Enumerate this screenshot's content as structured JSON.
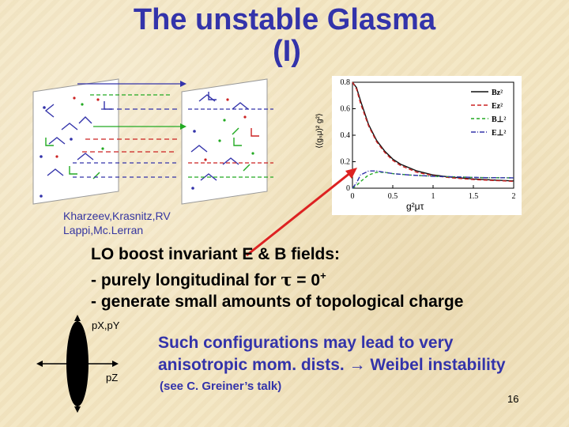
{
  "title": {
    "line1": "The unstable Glasma",
    "line2": "(I)"
  },
  "credit": {
    "line1": "Kharzeev,Krasnitz,RV",
    "line2": "Lappi,Mc.Lerran"
  },
  "bullets": {
    "heading": "LO boost invariant E & B fields:",
    "item1_prefix": "- purely longitudinal for ",
    "item1_tau": "τ",
    "item1_eq": " = 0",
    "item1_sup": "+",
    "item2": "- generate small amounts of topological charge"
  },
  "momentum_diagram": {
    "label_transverse": "pX,pY",
    "label_long": "pZ"
  },
  "conclusion": {
    "line1": "Such configurations may lead to very",
    "line2_prefix": "anisotropic mom. dists. ",
    "line2_arrow": "→",
    "line2_suffix": " Weibel instability",
    "note": "(see C. Greiner’s talk)"
  },
  "page_number": "16",
  "colors": {
    "title": "#3333aa",
    "arrow_red": "#dd2222"
  },
  "chart_data": {
    "type": "line",
    "xlabel": "g²μτ",
    "ylabel": "⟨(gₛμ)² g²⟩",
    "xlim": [
      0,
      2
    ],
    "ylim": [
      0,
      0.8
    ],
    "xticks": [
      "0",
      "0.5",
      "1",
      "1.5",
      "2"
    ],
    "yticks": [
      "0",
      "0.2",
      "0.4",
      "0.6",
      "0.8"
    ],
    "legend_position": "top-right",
    "series": [
      {
        "name": "Bz²",
        "color": "#111111",
        "dash": "",
        "x": [
          0,
          0.05,
          0.1,
          0.2,
          0.3,
          0.4,
          0.5,
          0.6,
          0.8,
          1.0,
          1.2,
          1.5,
          1.8,
          2.0
        ],
        "y": [
          0.8,
          0.76,
          0.66,
          0.48,
          0.36,
          0.28,
          0.22,
          0.18,
          0.13,
          0.1,
          0.085,
          0.07,
          0.06,
          0.055
        ]
      },
      {
        "name": "Ez²",
        "color": "#cc2222",
        "dash": "5,3",
        "x": [
          0,
          0.05,
          0.1,
          0.2,
          0.3,
          0.4,
          0.5,
          0.6,
          0.8,
          1.0,
          1.2,
          1.5,
          1.8,
          2.0
        ],
        "y": [
          0.8,
          0.75,
          0.64,
          0.47,
          0.35,
          0.27,
          0.21,
          0.17,
          0.12,
          0.095,
          0.08,
          0.065,
          0.057,
          0.052
        ]
      },
      {
        "name": "B⊥²",
        "color": "#22aa22",
        "dash": "4,3",
        "x": [
          0,
          0.05,
          0.1,
          0.2,
          0.3,
          0.4,
          0.5,
          0.7,
          1.0,
          1.3,
          1.6,
          2.0
        ],
        "y": [
          0,
          0.02,
          0.05,
          0.1,
          0.12,
          0.12,
          0.11,
          0.1,
          0.09,
          0.085,
          0.08,
          0.078
        ]
      },
      {
        "name": "E⊥²",
        "color": "#3333aa",
        "dash": "6,2,1,2",
        "x": [
          0,
          0.05,
          0.1,
          0.2,
          0.3,
          0.4,
          0.5,
          0.7,
          1.0,
          1.3,
          1.6,
          2.0
        ],
        "y": [
          0,
          0.04,
          0.1,
          0.13,
          0.13,
          0.12,
          0.11,
          0.1,
          0.09,
          0.085,
          0.08,
          0.078
        ]
      }
    ]
  }
}
